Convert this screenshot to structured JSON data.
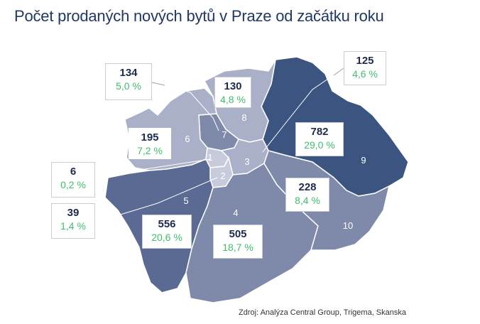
{
  "title": "Počet prodaných nových bytů v Praze od začátku roku",
  "source": "Zdroj: Analýza Central Group, Trigema, Skanska",
  "colors": {
    "title": "#1f3864",
    "count": "#1f2a4d",
    "percent": "#3fbf6b",
    "district_palest": "#c8cbdc",
    "district_pale": "#aab0c8",
    "district_mid": "#7f8aab",
    "district_dark": "#5a6a92",
    "district_darkest": "#3b5580"
  },
  "districts": [
    {
      "number": "1",
      "count": "6",
      "percent": "0,2 %"
    },
    {
      "number": "2",
      "count": "39",
      "percent": "1,4 %"
    },
    {
      "number": "3",
      "count": "125",
      "percent": "4,6 %"
    },
    {
      "number": "4",
      "count": "505",
      "percent": "18,7 %"
    },
    {
      "number": "5",
      "count": "556",
      "percent": "20,6 %"
    },
    {
      "number": "6",
      "count": "195",
      "percent": "7,2 %"
    },
    {
      "number": "7",
      "count": "134",
      "percent": "5,0 %"
    },
    {
      "number": "8",
      "count": "130",
      "percent": "4,8 %"
    },
    {
      "number": "9",
      "count": "782",
      "percent": "29,0 %"
    },
    {
      "number": "10",
      "count": "228",
      "percent": "8,4 %"
    }
  ]
}
